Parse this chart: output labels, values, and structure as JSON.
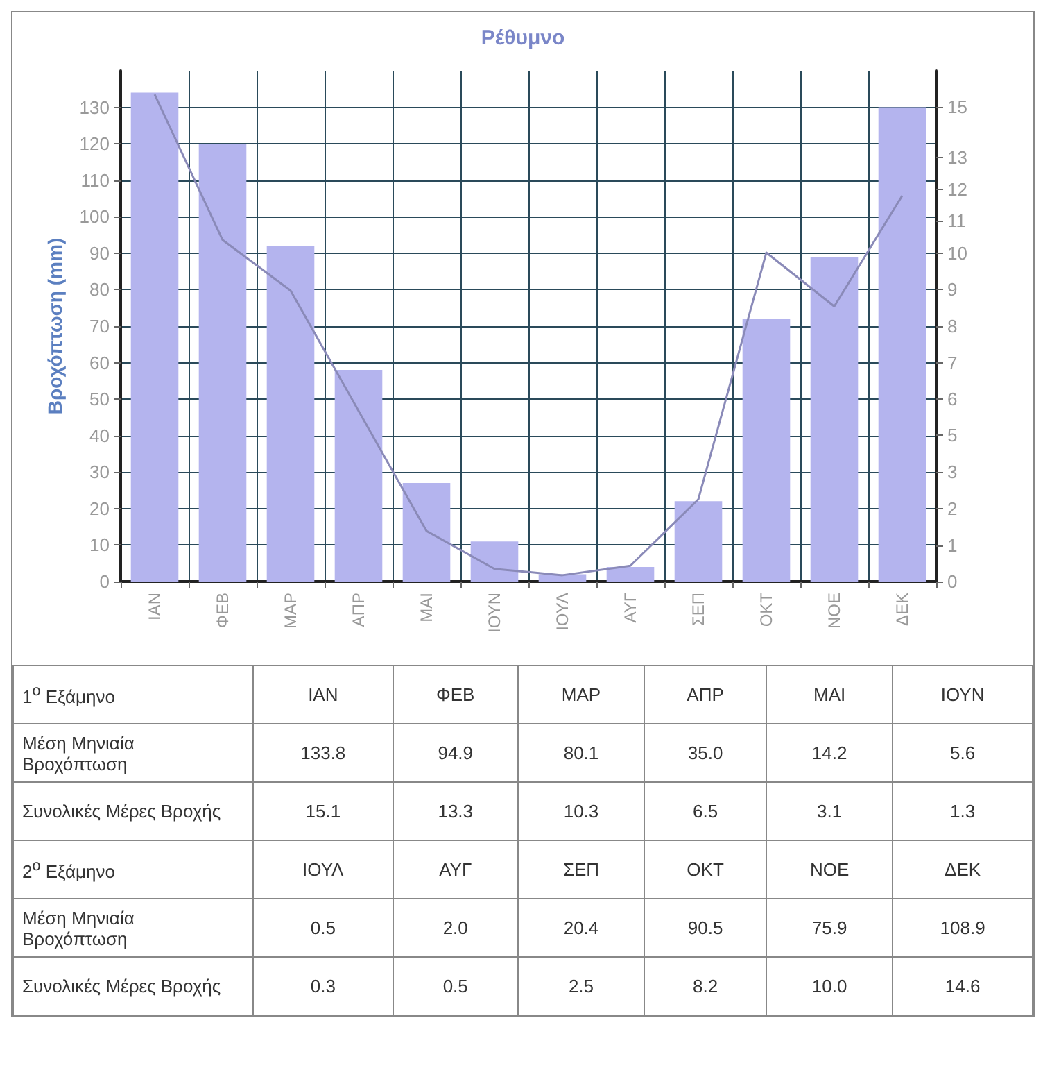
{
  "chart_data": [
    {
      "type": "bar",
      "title": "Ρέθυμνο",
      "ylabel": "Βροχόπτωση (mm)",
      "categories": [
        "ΙΑΝ",
        "ΦΕΒ",
        "ΜΑΡ",
        "ΑΠΡ",
        "ΜΑΙ",
        "ΙΟΥΝ",
        "ΙΟΥΛ",
        "ΑΥΓ",
        "ΣΕΠ",
        "ΟΚΤ",
        "ΝΟΕ",
        "ΔΕΚ"
      ],
      "series": [
        {
          "type": "bar",
          "color": "#b4b4ee",
          "values": [
            134,
            120,
            92,
            58,
            27,
            11,
            2,
            4,
            22,
            72,
            89,
            130
          ]
        },
        {
          "type": "line",
          "axis": "y2",
          "color": "#8a8ab8",
          "marker": "none",
          "values": [
            15.4,
            10.8,
            9.2,
            5.4,
            1.6,
            0.4,
            0.2,
            0.5,
            2.6,
            10.4,
            8.7,
            12.2
          ]
        }
      ],
      "ylim": [
        0,
        140
      ],
      "yticks": [
        0,
        10,
        20,
        30,
        40,
        50,
        60,
        70,
        80,
        90,
        100,
        110,
        120,
        130
      ],
      "y2lim": [
        0,
        16.15
      ],
      "y2ticks": [
        {
          "value": 0,
          "label": "0"
        },
        {
          "value": 1.15,
          "label": "1"
        },
        {
          "value": 2.31,
          "label": "2"
        },
        {
          "value": 3.46,
          "label": "3"
        },
        {
          "value": 4.62,
          "label": "5"
        },
        {
          "value": 5.77,
          "label": "6"
        },
        {
          "value": 6.92,
          "label": "7"
        },
        {
          "value": 8.08,
          "label": "8"
        },
        {
          "value": 9.23,
          "label": "9"
        },
        {
          "value": 10.38,
          "label": "10"
        },
        {
          "value": 11.4,
          "label": "11"
        },
        {
          "value": 12.4,
          "label": "12"
        },
        {
          "value": 13.4,
          "label": "13"
        },
        {
          "value": 15,
          "label": "15"
        }
      ],
      "grid": true
    },
    {
      "type": "other",
      "annotations": [
        "1$^{o}$ Εξάμηνο",
        "ΙΑΝ",
        "ΦΕΒ",
        "ΜΑΡ",
        "ΑΠΡ",
        "ΜΑΙ",
        "ΙΟΥΝ",
        "Μέση Μηνιαία Βροχόπτωση",
        "133.8",
        "94.9",
        "80.1",
        "35.0",
        "14.2",
        "5.6",
        "Συνολικές Μέρες Βροχής",
        "15.1",
        "13.3",
        "10.3",
        "6.5",
        "3.1",
        "1.3",
        "2$^{o}$ Εξάμηνο",
        "ΙΟΥΛ",
        "ΑΥΓ",
        "ΣΕΠ",
        "ΟΚΤ",
        "ΝΟΕ",
        "ΔΕΚ",
        "Μέση Μηνιαία Βροχόπτωση",
        "0.5",
        "2.0",
        "20.4",
        "90.5",
        "75.9",
        "108.9",
        "Συνολικές Μέρες Βροχής",
        "0.3",
        "0.5",
        "2.5",
        "8.2",
        "10.0",
        "14.6"
      ]
    }
  ]
}
